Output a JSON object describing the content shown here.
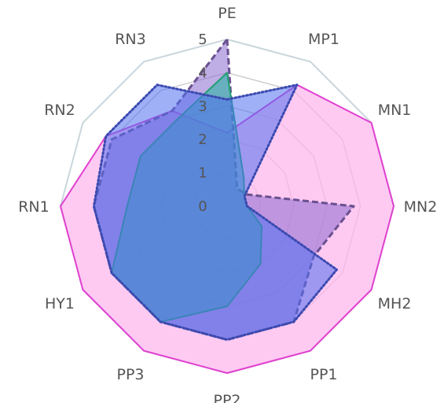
{
  "chart_data": {
    "type": "radar",
    "axes": [
      "PE",
      "MP1",
      "MN1",
      "MN2",
      "MH2",
      "PP1",
      "PP2",
      "PP3",
      "HY1",
      "RN1",
      "RN2",
      "RN3"
    ],
    "rlim": [
      0,
      5
    ],
    "ticks": [
      "0",
      "1",
      "2",
      "3",
      "4",
      "5"
    ],
    "grid": true,
    "legend": "none",
    "series": [
      {
        "values": [
          2.2,
          4.2,
          5.0,
          5.0,
          5.0,
          5.0,
          5.0,
          5.0,
          5.0,
          5.0,
          4.2,
          3.3
        ],
        "color": "#e040d0",
        "fill": "#ffb3ec",
        "line": "solid"
      },
      {
        "values": [
          5.0,
          0.6,
          0.7,
          3.8,
          3.0,
          4.0,
          4.0,
          4.0,
          4.0,
          4.0,
          4.0,
          3.3
        ],
        "color": "#6a5090",
        "fill": "#8a6ad0",
        "line": "dashed"
      },
      {
        "values": [
          4.0,
          1.0,
          0.6,
          0.6,
          1.2,
          2.0,
          3.0,
          4.0,
          4.0,
          3.0,
          3.0,
          3.0
        ],
        "color": "#20a070",
        "fill": "#20b0a0",
        "line": "solid"
      },
      {
        "values": [
          3.2,
          4.2,
          0.6,
          0.6,
          3.8,
          4.0,
          4.0,
          4.0,
          4.0,
          4.0,
          4.2,
          4.2
        ],
        "color": "#3a4ab0",
        "fill": "#5070f0",
        "line": "dotted"
      }
    ]
  }
}
